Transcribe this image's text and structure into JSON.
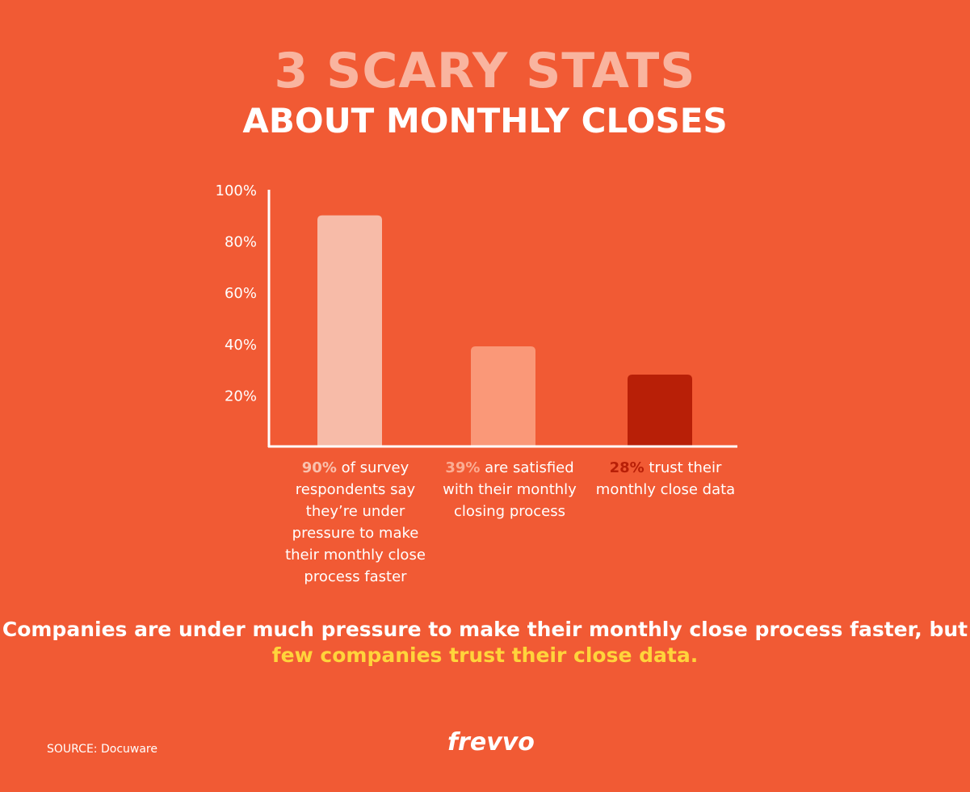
{
  "header": {
    "title": "3 SCARY STATS",
    "subtitle": "ABOUT MONTHLY CLOSES"
  },
  "chart_data": {
    "type": "bar",
    "yticks": [
      "100%",
      "80%",
      "60%",
      "40%",
      "20%"
    ],
    "ytick_values": [
      100,
      80,
      60,
      40,
      20
    ],
    "ylim": [
      0,
      100
    ],
    "grid": false,
    "values": [
      90,
      39,
      28
    ],
    "colors": [
      "#f7bba8",
      "#fa9878",
      "#b81f07"
    ],
    "categories": [
      {
        "pct": "90%",
        "text": " of survey respondents say they’re under pressure to make their monthly close process faster",
        "pct_color": "#f9c1ae"
      },
      {
        "pct": "39%",
        "text": " are satisfied with their monthly closing process",
        "pct_color": "#fbad93"
      },
      {
        "pct": "28%",
        "text": " trust their monthly close data",
        "pct_color": "#b81f07"
      }
    ]
  },
  "summary": {
    "line": "Companies are under much pressure to make their monthly close process faster, but",
    "highlight": "few companies trust their close data."
  },
  "footer": {
    "source": "SOURCE: Docuware",
    "logo": "frevvo"
  }
}
